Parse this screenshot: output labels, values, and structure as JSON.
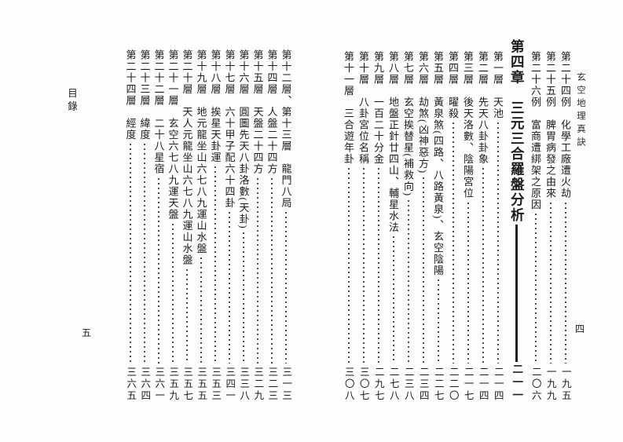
{
  "document": {
    "book_title_header": "玄空地理真訣",
    "right_page_folio": "四",
    "left_page_header": "目錄",
    "left_page_folio": "五"
  },
  "toc_right_page": {
    "entries": [
      {
        "text": "第二十四例　化學工廠遭火劫",
        "page": "一九五",
        "style": "entry"
      },
      {
        "text": "第二十五例　脾胃病發之由來",
        "page": "一九九",
        "style": "entry"
      },
      {
        "text": "第二十六例　富商遭綁架之原因",
        "page": "二〇六",
        "style": "entry"
      },
      {
        "text": "第四章　三元三合羅盤分析",
        "page": "二一一",
        "style": "chapter"
      },
      {
        "text": "第一層　天池",
        "page": "二一四",
        "style": "entry"
      },
      {
        "text": "第二層　先天八卦卦象",
        "page": "二一四",
        "style": "entry"
      },
      {
        "text": "第三層　後天洛數、陰陽宮位",
        "page": "二一七",
        "style": "entry"
      },
      {
        "text": "第四層　曜殺",
        "page": "二二〇",
        "style": "entry"
      },
      {
        "text": "第五層　黃泉煞(四路、八路黃泉)、玄空陰陽",
        "page": "二二七",
        "style": "entry"
      },
      {
        "text": "第六層　劫煞(凶神惡方)",
        "page": "二三四",
        "style": "entry"
      },
      {
        "text": "第七層　玄空挨替星(補救向)",
        "page": "二三八",
        "style": "entry"
      },
      {
        "text": "第八層　地盤正針廿四山、輔星水法",
        "page": "二七八",
        "style": "entry"
      },
      {
        "text": "第九層　一百二十分金",
        "page": "二九七",
        "style": "entry"
      },
      {
        "text": "第十層　八卦宮位名稱",
        "page": "三〇七",
        "style": "entry"
      },
      {
        "text": "第十一層　三合遊年卦",
        "page": "三〇八",
        "style": "entry"
      }
    ]
  },
  "toc_left_page": {
    "entries": [
      {
        "text": "第十二層、第十三層　龍門八局",
        "page": "三一三",
        "style": "entry"
      },
      {
        "text": "第十四層　人盤二十四方",
        "page": "三二三",
        "style": "entry"
      },
      {
        "text": "第十五層　天盤二十四方",
        "page": "三二九",
        "style": "entry"
      },
      {
        "text": "第十六層　圓圖先天八卦洛數(天卦)",
        "page": "三三八",
        "style": "entry"
      },
      {
        "text": "第十七層　六十甲子配六十四卦",
        "page": "三四一",
        "style": "entry"
      },
      {
        "text": "第十八層　挨星天卦運",
        "page": "三五三",
        "style": "entry"
      },
      {
        "text": "第十九層　地元龍坐山六七八九運山水盤",
        "page": "三五五",
        "style": "entry"
      },
      {
        "text": "第二十層　天人元龍坐山六七八九運山水盤",
        "page": "三五七",
        "style": "entry"
      },
      {
        "text": "第二十一層　玄空六七八九運天盤",
        "page": "三五九",
        "style": "entry"
      },
      {
        "text": "第二十二層　二十八星宿",
        "page": "三六一",
        "style": "entry"
      },
      {
        "text": "第二十三層　緯度",
        "page": "三六四",
        "style": "entry"
      },
      {
        "text": "第二十四層　經度",
        "page": "三六五",
        "style": "entry"
      }
    ]
  }
}
